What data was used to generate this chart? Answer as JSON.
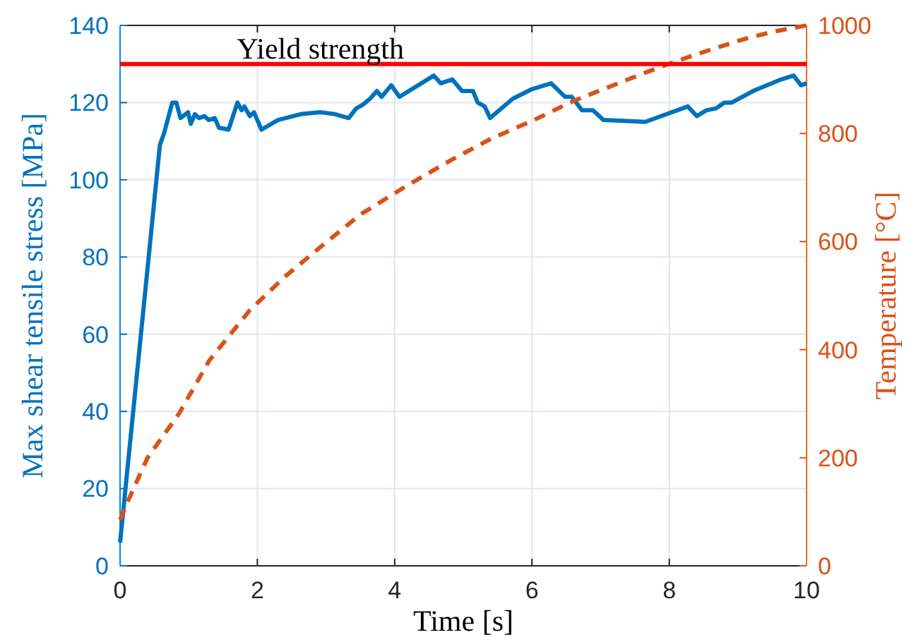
{
  "chart_data": {
    "type": "line",
    "xlabel": "Time [s]",
    "ylabel": "Max shear tensile stress [MPa]",
    "y2label": "Temperature [°C]",
    "xlim": [
      0,
      10
    ],
    "xticks": [
      0,
      2,
      4,
      6,
      8,
      10
    ],
    "ylim": [
      0,
      140
    ],
    "yticks": [
      0,
      20,
      40,
      60,
      80,
      100,
      120,
      140
    ],
    "y2lim": [
      0,
      1000
    ],
    "y2ticks": [
      0,
      200,
      400,
      600,
      800,
      1000
    ],
    "grid": true,
    "ref_lines": [
      {
        "axis": "y",
        "value": 130,
        "label": "Yield strength",
        "color": "#ff0000"
      }
    ],
    "series": [
      {
        "color": "#0072bd",
        "line_style": "solid",
        "x": [
          0,
          0.58,
          0.64,
          0.76,
          0.82,
          0.88,
          0.99,
          1.03,
          1.09,
          1.15,
          1.23,
          1.29,
          1.38,
          1.44,
          1.58,
          1.71,
          1.77,
          1.81,
          1.89,
          1.95,
          2.06,
          2.3,
          2.63,
          2.92,
          3.13,
          3.33,
          3.44,
          3.54,
          3.64,
          3.74,
          3.81,
          3.95,
          4.07,
          4.57,
          4.67,
          4.84,
          4.98,
          5.14,
          5.21,
          5.31,
          5.39,
          5.72,
          6.0,
          6.28,
          6.48,
          6.58,
          6.73,
          6.89,
          7.04,
          7.65,
          8.27,
          8.4,
          8.54,
          8.68,
          8.8,
          8.91,
          9.22,
          9.63,
          9.81,
          9.92,
          10
        ],
        "values": [
          6,
          109,
          112,
          120,
          120,
          116,
          117.5,
          114.5,
          117,
          116,
          116.5,
          115.5,
          116,
          113.5,
          113,
          120,
          118,
          119,
          116.5,
          117.5,
          113,
          115.5,
          117,
          117.5,
          117,
          116,
          118.5,
          119.5,
          121,
          123,
          121.5,
          124.5,
          121.5,
          127,
          125,
          126,
          123,
          123,
          120,
          119,
          116,
          121,
          123.5,
          125,
          121.5,
          121.5,
          118,
          118,
          115.5,
          115,
          119,
          116.5,
          118,
          118.5,
          120,
          120,
          123,
          126,
          127,
          124.5,
          125
        ]
      },
      {
        "color": "#d95319",
        "line_style": "dashed",
        "axis": "y2",
        "x": [
          0,
          0.07,
          0.4,
          0.86,
          1.3,
          1.89,
          2.4,
          2.92,
          3.5,
          4.16,
          4.84,
          5.4,
          6.03,
          6.6,
          7.2,
          7.7,
          8.13,
          8.6,
          9.1,
          9.5,
          10
        ],
        "values": [
          85,
          107,
          200,
          282,
          380,
          473,
          535,
          590,
          650,
          702,
          752,
          790,
          825,
          860,
          890,
          915,
          935,
          955,
          975,
          988,
          1000
        ]
      }
    ]
  }
}
